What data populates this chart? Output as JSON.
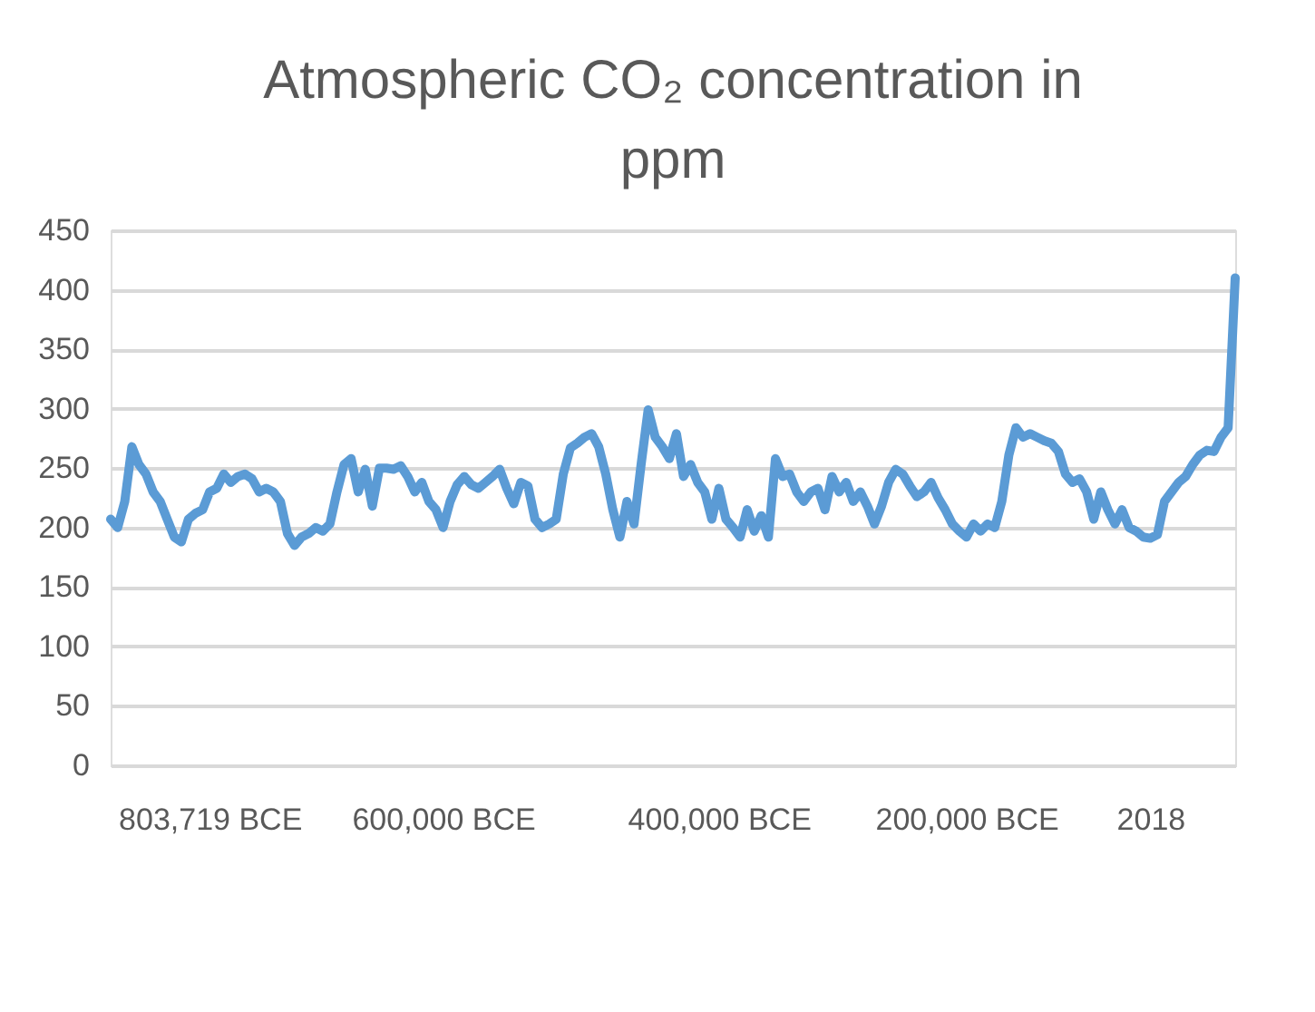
{
  "chart_data": {
    "type": "line",
    "title": "Atmospheric CO₂ concentration in ppm",
    "categories": [
      null,
      null,
      null,
      null,
      null,
      null,
      null,
      null,
      null,
      null,
      null,
      null,
      null,
      null,
      "803,719 BCE",
      null,
      null,
      null,
      null,
      null,
      null,
      null,
      null,
      null,
      null,
      null,
      null,
      null,
      null,
      null,
      null,
      null,
      null,
      null,
      null,
      null,
      null,
      null,
      null,
      null,
      null,
      null,
      null,
      null,
      null,
      null,
      null,
      "600,000 BCE",
      null,
      null,
      null,
      null,
      null,
      null,
      null,
      null,
      null,
      null,
      null,
      null,
      null,
      null,
      null,
      null,
      null,
      null,
      null,
      null,
      null,
      null,
      null,
      null,
      null,
      null,
      null,
      null,
      null,
      null,
      null,
      null,
      null,
      null,
      null,
      null,
      null,
      null,
      "400,000 BCE",
      null,
      null,
      null,
      null,
      null,
      null,
      null,
      null,
      null,
      null,
      null,
      null,
      null,
      null,
      null,
      null,
      null,
      null,
      null,
      null,
      null,
      null,
      null,
      null,
      null,
      null,
      null,
      null,
      null,
      null,
      null,
      null,
      null,
      null,
      "200,000 BCE",
      null,
      null,
      null,
      null,
      null,
      null,
      null,
      null,
      null,
      null,
      null,
      null,
      null,
      null,
      null,
      null,
      null,
      null,
      null,
      null,
      null,
      null,
      null,
      null,
      null,
      "2018",
      null,
      null,
      null,
      null,
      null,
      null,
      null,
      null,
      null,
      null,
      null,
      null
    ],
    "series": [
      {
        "color": "#5b9bd5",
        "values": [
          207,
          200,
          222,
          268,
          253,
          245,
          230,
          222,
          207,
          192,
          188,
          207,
          212,
          215,
          230,
          233,
          245,
          238,
          243,
          245,
          241,
          230,
          233,
          230,
          222,
          195,
          185,
          192,
          195,
          200,
          197,
          203,
          230,
          253,
          258,
          230,
          249,
          218,
          250,
          250,
          249,
          252,
          243,
          230,
          238,
          222,
          215,
          200,
          222,
          236,
          243,
          236,
          233,
          238,
          243,
          249,
          233,
          220,
          238,
          235,
          207,
          200,
          203,
          207,
          245,
          267,
          271,
          276,
          279,
          268,
          245,
          215,
          192,
          222,
          203,
          253,
          299,
          276,
          268,
          258,
          279,
          243,
          253,
          238,
          230,
          207,
          233,
          207,
          200,
          192,
          215,
          197,
          210,
          192,
          258,
          243,
          245,
          230,
          222,
          230,
          233,
          215,
          243,
          230,
          238,
          222,
          230,
          218,
          203,
          218,
          238,
          249,
          245,
          235,
          226,
          230,
          238,
          225,
          215,
          203,
          197,
          192,
          203,
          197,
          203,
          200,
          222,
          261,
          284,
          276,
          279,
          276,
          273,
          271,
          264,
          245,
          238,
          241,
          230,
          207,
          230,
          215,
          203,
          215,
          200,
          197,
          192,
          191,
          194,
          222,
          230,
          238,
          243,
          253,
          261,
          265,
          264,
          276,
          284,
          410
        ]
      }
    ],
    "ylim": [
      0,
      450
    ],
    "yticks": [
      0,
      50,
      100,
      150,
      200,
      250,
      300,
      350,
      400,
      450
    ],
    "grid": "y",
    "line_style": "solid",
    "marker": "none"
  }
}
